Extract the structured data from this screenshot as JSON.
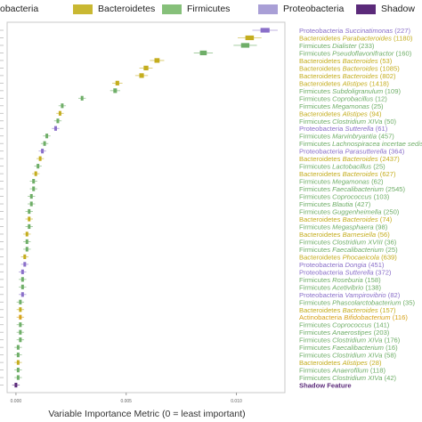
{
  "chart_data": {
    "type": "scatter",
    "xlabel": "Variable Importance Metric (0 = least important)",
    "xticks": [
      "0.000",
      "0.005",
      "0.010"
    ],
    "xlim": [
      -0.0004,
      0.0122
    ],
    "legend": {
      "position": "top",
      "items": [
        {
          "name": "Actinobacteria",
          "shown": "obacteria",
          "color": "#6a3d9a"
        },
        {
          "name": "Bacteroidetes",
          "shown": "Bacteroidetes",
          "color": "#c9b832"
        },
        {
          "name": "Firmicutes",
          "shown": "Firmicutes",
          "color": "#86c07a"
        },
        {
          "name": "Proteobacteria",
          "shown": "Proteobacteria",
          "color": "#a99fd6"
        },
        {
          "name": "Shadow",
          "shown": "Shadow",
          "color": "#5b2a7a"
        }
      ]
    },
    "phylum_colors": {
      "Proteobacteria": "#8a6fc9",
      "Bacteroidetes": "#c4ad1e",
      "Firmicutes": "#6fae68",
      "Actinobacteria": "#d6a21a",
      "Shadow": "#5b2a7a"
    },
    "series": [
      {
        "phylum": "Proteobacteria",
        "genus": "Succinatimonas",
        "count": "(227)",
        "value": 0.0113
      },
      {
        "phylum": "Bacteroidetes",
        "genus": "Parabacteroides",
        "count": "(1180)",
        "value": 0.0106
      },
      {
        "phylum": "Firmicutes",
        "genus": "Dialister",
        "count": "(233)",
        "value": 0.0104
      },
      {
        "phylum": "Firmicutes",
        "genus": "Pseudoflavonifractor",
        "count": "(160)",
        "value": 0.0085
      },
      {
        "phylum": "Bacteroidetes",
        "genus": "Bacteroides",
        "count": "(53)",
        "value": 0.0064
      },
      {
        "phylum": "Bacteroidetes",
        "genus": "Bacteroides",
        "count": "(1085)",
        "value": 0.0059
      },
      {
        "phylum": "Bacteroidetes",
        "genus": "Bacteroides",
        "count": "(802)",
        "value": 0.0057
      },
      {
        "phylum": "Bacteroidetes",
        "genus": "Alistipes",
        "count": "(1418)",
        "value": 0.0046
      },
      {
        "phylum": "Firmicutes",
        "genus": "Subdoligranulum",
        "count": "(109)",
        "value": 0.0045
      },
      {
        "phylum": "Firmicutes",
        "genus": "Coprobacillus",
        "count": "(12)",
        "value": 0.003
      },
      {
        "phylum": "Firmicutes",
        "genus": "Megamonas",
        "count": "(25)",
        "value": 0.0021
      },
      {
        "phylum": "Bacteroidetes",
        "genus": "Alistipes",
        "count": "(94)",
        "value": 0.002
      },
      {
        "phylum": "Firmicutes",
        "genus": "Clostridium XIVa",
        "count": "(50)",
        "value": 0.0019
      },
      {
        "phylum": "Proteobacteria",
        "genus": "Sutterella",
        "count": "(61)",
        "value": 0.0018
      },
      {
        "phylum": "Firmicutes",
        "genus": "Marvinbryantia",
        "count": "(457)",
        "value": 0.0014
      },
      {
        "phylum": "Firmicutes",
        "genus": "Lachnospiracea incertae sedis",
        "count": "",
        "value": 0.0013
      },
      {
        "phylum": "Proteobacteria",
        "genus": "Parasutterella",
        "count": "(364)",
        "value": 0.0012
      },
      {
        "phylum": "Bacteroidetes",
        "genus": "Bacteroides",
        "count": "(2437)",
        "value": 0.0011
      },
      {
        "phylum": "Firmicutes",
        "genus": "Lactobacillus",
        "count": "(25)",
        "value": 0.001
      },
      {
        "phylum": "Bacteroidetes",
        "genus": "Bacteroides",
        "count": "(627)",
        "value": 0.0009
      },
      {
        "phylum": "Firmicutes",
        "genus": "Megamonas",
        "count": "(62)",
        "value": 0.0008
      },
      {
        "phylum": "Firmicutes",
        "genus": "Faecalibacterium",
        "count": "(2545)",
        "value": 0.0008
      },
      {
        "phylum": "Firmicutes",
        "genus": "Coprococcus",
        "count": "(103)",
        "value": 0.0007
      },
      {
        "phylum": "Firmicutes",
        "genus": "Blautia",
        "count": "(427)",
        "value": 0.0007
      },
      {
        "phylum": "Firmicutes",
        "genus": "Guggenheimella",
        "count": "(250)",
        "value": 0.0006
      },
      {
        "phylum": "Bacteroidetes",
        "genus": "Bacteroides",
        "count": "(74)",
        "value": 0.0006
      },
      {
        "phylum": "Firmicutes",
        "genus": "Megasphaera",
        "count": "(98)",
        "value": 0.0006
      },
      {
        "phylum": "Bacteroidetes",
        "genus": "Barnesiella",
        "count": "(56)",
        "value": 0.0005
      },
      {
        "phylum": "Firmicutes",
        "genus": "Clostridium XVIII",
        "count": "(36)",
        "value": 0.0005
      },
      {
        "phylum": "Firmicutes",
        "genus": "Faecalibacterium",
        "count": "(25)",
        "value": 0.0005
      },
      {
        "phylum": "Bacteroidetes",
        "genus": "Phocaeicola",
        "count": "(639)",
        "value": 0.0004
      },
      {
        "phylum": "Proteobacteria",
        "genus": "Dongia",
        "count": "(451)",
        "value": 0.0004
      },
      {
        "phylum": "Proteobacteria",
        "genus": "Sutterella",
        "count": "(372)",
        "value": 0.0003
      },
      {
        "phylum": "Firmicutes",
        "genus": "Roseburia",
        "count": "(158)",
        "value": 0.0003
      },
      {
        "phylum": "Firmicutes",
        "genus": "Acetivibrio",
        "count": "(138)",
        "value": 0.0003
      },
      {
        "phylum": "Proteobacteria",
        "genus": "Vampirovibrio",
        "count": "(82)",
        "value": 0.0003
      },
      {
        "phylum": "Firmicutes",
        "genus": "Phascolarctobacterium",
        "count": "(35)",
        "value": 0.0002
      },
      {
        "phylum": "Bacteroidetes",
        "genus": "Bacteroides",
        "count": "(157)",
        "value": 0.0002
      },
      {
        "phylum": "Actinobacteria",
        "genus": "Bifidobacterium",
        "count": "(116)",
        "value": 0.0002
      },
      {
        "phylum": "Firmicutes",
        "genus": "Coprococcus",
        "count": "(141)",
        "value": 0.0002
      },
      {
        "phylum": "Firmicutes",
        "genus": "Anaerostipes",
        "count": "(203)",
        "value": 0.0002
      },
      {
        "phylum": "Firmicutes",
        "genus": "Clostridium XIVa",
        "count": "(176)",
        "value": 0.0002
      },
      {
        "phylum": "Firmicutes",
        "genus": "Faecalibacterium",
        "count": "(16)",
        "value": 0.0001
      },
      {
        "phylum": "Firmicutes",
        "genus": "Clostridium XIVa",
        "count": "(58)",
        "value": 0.0001
      },
      {
        "phylum": "Bacteroidetes",
        "genus": "Alistipes",
        "count": "(28)",
        "value": 0.0001
      },
      {
        "phylum": "Firmicutes",
        "genus": "Anaerofilum",
        "count": "(118)",
        "value": 0.0001
      },
      {
        "phylum": "Firmicutes",
        "genus": "Clostridium XIVa",
        "count": "(42)",
        "value": 0.0001
      },
      {
        "phylum": "Shadow",
        "genus": "",
        "label": "Shadow Feature",
        "count": "",
        "value": 0.0
      }
    ]
  }
}
